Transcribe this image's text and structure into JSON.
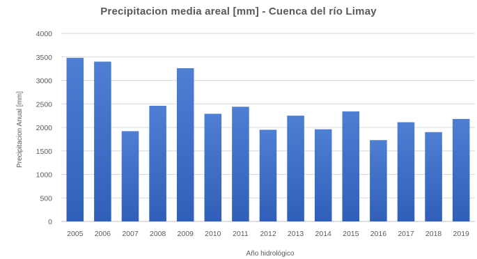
{
  "chart_data": {
    "type": "bar",
    "title": "Precipitacion media areal [mm] - Cuenca del río Limay",
    "xlabel": "Año hidrológico",
    "ylabel": "Precipitacion Anual [mm]",
    "ylim": [
      0,
      4000
    ],
    "yticks": [
      0,
      500,
      1000,
      1500,
      2000,
      2500,
      3000,
      3500,
      4000
    ],
    "grid": true,
    "legend": "none",
    "categories": [
      "2005",
      "2006",
      "2007",
      "2008",
      "2009",
      "2010",
      "2011",
      "2012",
      "2013",
      "2014",
      "2015",
      "2016",
      "2017",
      "2018",
      "2019"
    ],
    "values": [
      3480,
      3400,
      1920,
      2460,
      3260,
      2290,
      2440,
      1950,
      2250,
      1960,
      2340,
      1730,
      2110,
      1900,
      2180
    ],
    "bar_color_top": "#4f7fd3",
    "bar_color_bottom": "#2f5fb8"
  }
}
